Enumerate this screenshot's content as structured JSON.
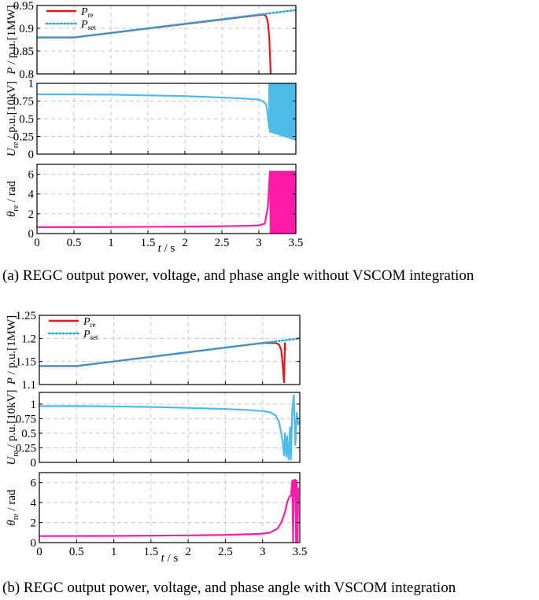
{
  "colors": {
    "p_re": "#e8151b",
    "p_set": "#2aa7dc",
    "u_re": "#4cbbe8",
    "theta": "#ff1aa8",
    "grid": "#c8c8c8",
    "axis": "#000000"
  },
  "chart_data": [
    {
      "panel": "a",
      "type": "line",
      "caption": "(a) REGC output power, voltage, and phase angle without VSCOM integration",
      "xlim": [
        0,
        3.5
      ],
      "xticks": [
        "0",
        "0.5",
        "1",
        "1.5",
        "2",
        "2.5",
        "3",
        "3.5"
      ],
      "xlabel": "t / s",
      "grid": true,
      "subplots": [
        {
          "ylabel": "P / p.u.[1MW]",
          "ylim": [
            0.8,
            0.95
          ],
          "yticks": [
            "0.8",
            "0.85",
            "0.9",
            "0.95"
          ],
          "legend": {
            "position": "top-left",
            "entries": [
              "P_re",
              "P_set"
            ]
          },
          "series": [
            {
              "name": "P_re",
              "style": "solid",
              "color": "#e8151b",
              "x": [
                0,
                0.5,
                3.0,
                3.05,
                3.08,
                3.1,
                3.12,
                3.14,
                3.15,
                3.16
              ],
              "y": [
                0.88,
                0.88,
                0.929,
                0.93,
                0.929,
                0.926,
                0.915,
                0.88,
                0.84,
                0.8
              ]
            },
            {
              "name": "P_set",
              "style": "dotted",
              "color": "#2aa7dc",
              "x": [
                0,
                0.5,
                3.5
              ],
              "y": [
                0.88,
                0.88,
                0.94
              ]
            }
          ]
        },
        {
          "ylabel": "U_re / p.u.[10kV]",
          "ylim": [
            0,
            1
          ],
          "yticks": [
            "0",
            "0.25",
            "0.5",
            "0.75",
            "1"
          ],
          "series": [
            {
              "name": "U_re",
              "style": "solid",
              "color": "#4cbbe8",
              "x": [
                0,
                0.5,
                1.0,
                1.5,
                2.0,
                2.5,
                2.8,
                3.0,
                3.05,
                3.1,
                3.12,
                3.14
              ],
              "y": [
                0.845,
                0.845,
                0.84,
                0.83,
                0.82,
                0.8,
                0.785,
                0.77,
                0.75,
                0.7,
                0.55,
                0.36
              ],
              "oscillation": {
                "x_start": 3.14,
                "x_end": 3.5,
                "low": [
                  0.32,
                  0.2
                ],
                "high": 1.0
              }
            }
          ]
        },
        {
          "ylabel": "θ_re / rad",
          "ylim": [
            0,
            7
          ],
          "yticks": [
            "0",
            "2",
            "4",
            "6"
          ],
          "series": [
            {
              "name": "theta_re",
              "style": "solid",
              "color": "#ff1aa8",
              "x": [
                0,
                1.0,
                2.0,
                2.5,
                2.8,
                3.0,
                3.08,
                3.12,
                3.15
              ],
              "y": [
                0.65,
                0.66,
                0.7,
                0.74,
                0.78,
                0.83,
                1.0,
                2.6,
                6.28
              ],
              "oscillation": {
                "x_start": 3.15,
                "x_end": 3.5,
                "low": [
                  0.0,
                  0.0
                ],
                "high": 6.28
              }
            }
          ]
        }
      ]
    },
    {
      "panel": "b",
      "type": "line",
      "caption": "(b) REGC output power, voltage, and phase angle with VSCOM integration",
      "xlim": [
        0,
        3.5
      ],
      "xticks": [
        "0",
        "0.5",
        "1",
        "1.5",
        "2",
        "2.5",
        "3",
        "3.5"
      ],
      "xlabel": "t / s",
      "grid": true,
      "subplots": [
        {
          "ylabel": "P / p.u.[1MW]",
          "ylim": [
            1.1,
            1.25
          ],
          "yticks": [
            "1.1",
            "1.15",
            "1.2",
            "1.25"
          ],
          "legend": {
            "position": "top-left",
            "entries": [
              "P_re",
              "P_set"
            ]
          },
          "series": [
            {
              "name": "P_re",
              "style": "solid",
              "color": "#e8151b",
              "x": [
                0,
                0.5,
                3.0,
                3.1,
                3.18,
                3.22,
                3.25,
                3.27,
                3.285,
                3.29,
                3.3,
                3.305
              ],
              "y": [
                1.14,
                1.14,
                1.19,
                1.19,
                1.19,
                1.187,
                1.175,
                1.145,
                1.11,
                1.105,
                1.19,
                1.175
              ]
            },
            {
              "name": "P_set",
              "style": "dotted",
              "color": "#2aa7dc",
              "x": [
                0,
                0.5,
                3.5
              ],
              "y": [
                1.14,
                1.14,
                1.2
              ]
            }
          ]
        },
        {
          "ylabel": "U_re / p.u.[10kV]",
          "ylim": [
            0,
            1.2
          ],
          "yticks": [
            "0",
            "0.25",
            "0.5",
            "0.75",
            "1"
          ],
          "series": [
            {
              "name": "U_re",
              "style": "solid",
              "color": "#4cbbe8",
              "x": [
                0,
                0.5,
                1.0,
                1.5,
                2.0,
                2.5,
                2.8,
                3.0,
                3.1,
                3.18,
                3.22,
                3.25,
                3.27,
                3.29,
                3.3,
                3.31,
                3.32,
                3.33,
                3.35,
                3.37,
                3.38,
                3.4,
                3.42,
                3.44,
                3.46,
                3.48,
                3.5
              ],
              "y": [
                0.965,
                0.965,
                0.96,
                0.95,
                0.935,
                0.915,
                0.9,
                0.88,
                0.86,
                0.8,
                0.7,
                0.5,
                0.35,
                0.12,
                0.5,
                0.28,
                0.1,
                0.45,
                0.05,
                0.6,
                0.05,
                0.9,
                1.15,
                0.3,
                0.85,
                0.65,
                0.72
              ]
            }
          ]
        },
        {
          "ylabel": "θ_re / rad",
          "ylim": [
            0,
            7
          ],
          "yticks": [
            "0",
            "2",
            "4",
            "6"
          ],
          "series": [
            {
              "name": "theta_re",
              "style": "solid",
              "color": "#ff1aa8",
              "x": [
                0,
                1.0,
                2.0,
                2.5,
                2.8,
                3.0,
                3.1,
                3.2,
                3.25,
                3.3,
                3.33,
                3.36,
                3.38,
                3.4,
                3.41,
                3.42,
                3.43,
                3.44,
                3.45,
                3.46,
                3.47,
                3.48
              ],
              "y": [
                0.65,
                0.67,
                0.72,
                0.77,
                0.83,
                0.9,
                1.0,
                1.4,
                2.0,
                3.0,
                4.0,
                4.6,
                4.7,
                6.2,
                0.1,
                6.28,
                4.8,
                6.28,
                0.0,
                6.2,
                0.0,
                5.5
              ]
            }
          ]
        }
      ]
    }
  ],
  "legend_labels": {
    "p_re_main": "P",
    "p_re_sub": "re",
    "p_set_main": "P",
    "p_set_sub": "set"
  },
  "axis_labels": {
    "power_main": "P",
    "power_rest": " / p.u.[1MW]",
    "volt_main": "U",
    "volt_sub": "re",
    "volt_rest": " / p.u.[10kV]",
    "theta_main": "θ",
    "theta_sub": "re",
    "theta_rest": " / rad",
    "time_main": "t",
    "time_rest": " / s"
  }
}
